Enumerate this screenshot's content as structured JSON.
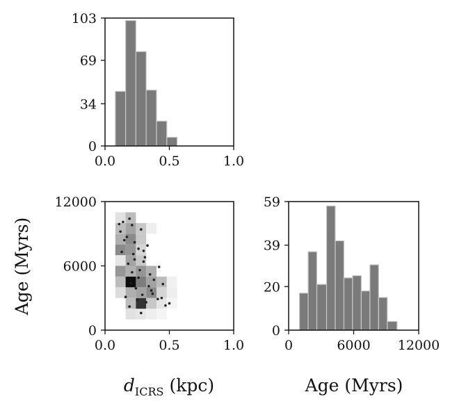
{
  "chart_data": [
    {
      "id": "distance_hist",
      "type": "bar",
      "title": "",
      "xlabel": "",
      "ylabel": "",
      "xlim": [
        0.0,
        1.0
      ],
      "ylim": [
        0,
        103
      ],
      "xticks": [
        "0.0",
        "0.5",
        "1.0"
      ],
      "yticks": [
        "0",
        "34",
        "69",
        "103"
      ],
      "bin_edges": [
        0.08,
        0.16,
        0.24,
        0.32,
        0.4,
        0.48,
        0.56
      ],
      "values": [
        44,
        101,
        76,
        45,
        20,
        7
      ],
      "color": "#7a7a7a"
    },
    {
      "id": "distance_age_density",
      "type": "heatmap",
      "xlabel": "d",
      "xlabel_subscript": "ICRS",
      "xlabel_unit": "(kpc)",
      "ylabel": "Age (Myrs)",
      "xlim": [
        0.0,
        1.0
      ],
      "ylim": [
        0,
        12000
      ],
      "xticks": [
        "0.0",
        "0.5",
        "1.0"
      ],
      "yticks": [
        "0",
        "6000",
        "12000"
      ],
      "x_edges": [
        0.08,
        0.16,
        0.24,
        0.32,
        0.4,
        0.48,
        0.56
      ],
      "y_edges": [
        1000,
        2000,
        3000,
        4000,
        5000,
        6000,
        7000,
        8000,
        9000,
        10000,
        11000
      ],
      "density": [
        [
          0,
          0.1,
          0.08,
          0.05,
          0.02,
          0.0
        ],
        [
          0,
          0.25,
          0.8,
          0.2,
          0.08,
          0.02
        ],
        [
          0.12,
          0.3,
          0.35,
          0.45,
          0.15,
          0.05
        ],
        [
          0.25,
          0.95,
          0.5,
          0.35,
          0.25,
          0.04
        ],
        [
          0.4,
          0.3,
          0.4,
          0.3,
          0.0,
          0.0
        ],
        [
          0.08,
          0.35,
          0.2,
          0.0,
          0.0,
          0.0
        ],
        [
          0.45,
          0.4,
          0.15,
          0.0,
          0.0,
          0.0
        ],
        [
          0.3,
          0.45,
          0.2,
          0.0,
          0.0,
          0.0
        ],
        [
          0.25,
          0.35,
          0.2,
          0.05,
          0.0,
          0.0
        ],
        [
          0.1,
          0.25,
          0.0,
          0.0,
          0.0,
          0.0
        ]
      ],
      "scatter_x": [
        0.12,
        0.14,
        0.17,
        0.19,
        0.21,
        0.23,
        0.26,
        0.28,
        0.31,
        0.33,
        0.13,
        0.18,
        0.22,
        0.27,
        0.3,
        0.35,
        0.38,
        0.42,
        0.45,
        0.2,
        0.24,
        0.29,
        0.34,
        0.16,
        0.25,
        0.32,
        0.37,
        0.41,
        0.47,
        0.15,
        0.21,
        0.26,
        0.19,
        0.28,
        0.36,
        0.44,
        0.5,
        0.11,
        0.23,
        0.3
      ],
      "scatter_y": [
        9200,
        10100,
        8700,
        10400,
        9800,
        8200,
        7600,
        9400,
        6800,
        7900,
        7300,
        6200,
        7100,
        5600,
        6400,
        5200,
        4700,
        5900,
        4300,
        4400,
        3900,
        3300,
        4100,
        3100,
        2800,
        2600,
        3400,
        2900,
        2300,
        8400,
        5400,
        4900,
        2200,
        1600,
        3700,
        3000,
        2500,
        9900,
        6600,
        7400
      ]
    },
    {
      "id": "age_hist",
      "type": "bar",
      "xlabel": "Age (Myrs)",
      "ylabel": "",
      "xlim": [
        0,
        12000
      ],
      "ylim": [
        0,
        59
      ],
      "xticks": [
        "0",
        "6000",
        "12000"
      ],
      "yticks": [
        "0",
        "20",
        "39",
        "59"
      ],
      "bin_edges": [
        1000,
        1800,
        2600,
        3500,
        4300,
        5100,
        5900,
        6700,
        7500,
        8300,
        9100,
        10000,
        10800,
        11800
      ],
      "values": [
        17,
        36,
        21,
        57,
        41,
        24,
        25,
        18,
        30,
        15,
        4,
        0,
        0
      ],
      "color": "#7a7a7a"
    }
  ]
}
